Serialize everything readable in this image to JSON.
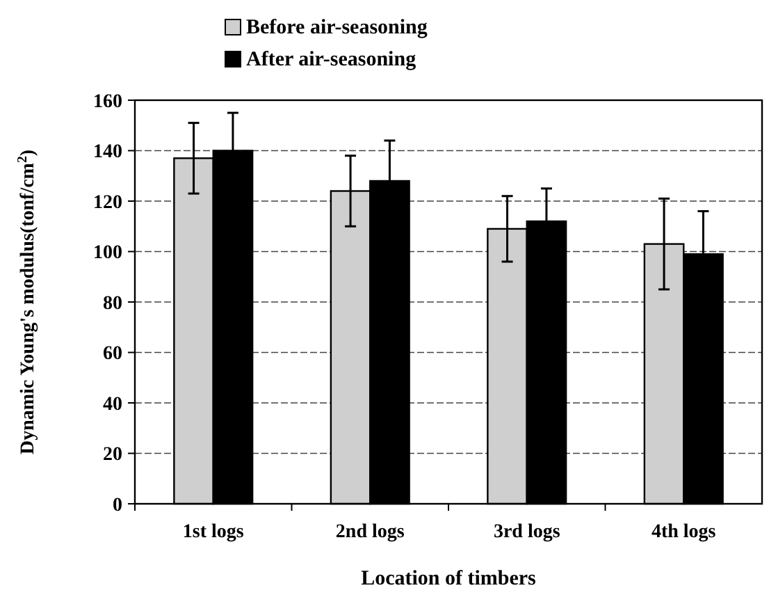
{
  "chart_data": {
    "type": "bar",
    "xlabel": "Location of timbers",
    "ylabel": "Dynamic Young's modulus(tonf/cm$^{2}$)",
    "categories": [
      "1st logs",
      "2nd logs",
      "3rd logs",
      "4th logs"
    ],
    "series": [
      {
        "name": "Before air-seasoning",
        "color": "#cfcfcf",
        "values": [
          137,
          124,
          109,
          103
        ],
        "errors": [
          14,
          14,
          13,
          18
        ]
      },
      {
        "name": "After air-seasoning",
        "color": "#000000",
        "values": [
          140,
          128,
          112,
          99
        ],
        "errors": [
          15,
          16,
          13,
          17
        ]
      }
    ],
    "ylim": [
      0,
      160
    ],
    "yticks": [
      0,
      20,
      40,
      60,
      80,
      100,
      120,
      140,
      160
    ],
    "grid": "y",
    "legend": "top"
  }
}
